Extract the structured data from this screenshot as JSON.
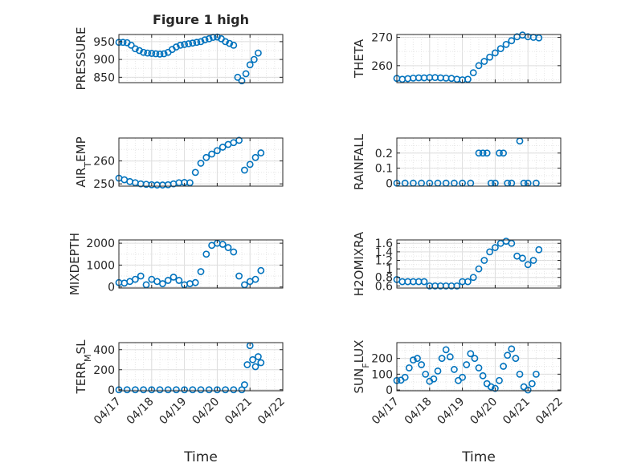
{
  "chart_data": [
    {
      "type": "scatter",
      "title": "Figure 1 high",
      "ylabel": "PRESSURE",
      "xlim": [
        "04/17",
        "04/22"
      ],
      "ylim": [
        835,
        970
      ],
      "yticks": [
        "850",
        "900",
        "950"
      ],
      "xticks": [],
      "xlabel": "",
      "grid": true,
      "marker": "circle",
      "color": "#0072BD",
      "x": [
        "04/17 00:00",
        "04/17 03:00",
        "04/17 06:00",
        "04/17 09:00",
        "04/17 12:00",
        "04/17 15:00",
        "04/17 18:00",
        "04/17 21:00",
        "04/18 00:00",
        "04/18 03:00",
        "04/18 06:00",
        "04/18 09:00",
        "04/18 12:00",
        "04/18 15:00",
        "04/18 18:00",
        "04/18 21:00",
        "04/19 00:00",
        "04/19 03:00",
        "04/19 06:00",
        "04/19 09:00",
        "04/19 12:00",
        "04/19 15:00",
        "04/19 18:00",
        "04/19 21:00",
        "04/20 00:00",
        "04/20 03:00",
        "04/20 06:00",
        "04/20 09:00",
        "04/20 12:00",
        "04/20 15:00",
        "04/20 18:00",
        "04/20 21:00",
        "04/21 00:00",
        "04/21 03:00",
        "04/21 06:00"
      ],
      "y": [
        948,
        948,
        947,
        940,
        930,
        925,
        920,
        918,
        917,
        916,
        915,
        916,
        920,
        928,
        935,
        940,
        942,
        944,
        946,
        948,
        950,
        955,
        958,
        962,
        963,
        958,
        950,
        945,
        940,
        850,
        840,
        860,
        885,
        900,
        918
      ]
    },
    {
      "type": "scatter",
      "title": "",
      "ylabel": "THETA",
      "xlim": [
        "04/17",
        "04/22"
      ],
      "ylim": [
        254,
        271
      ],
      "yticks": [
        "260",
        "270"
      ],
      "xticks": [],
      "xlabel": "",
      "grid": true,
      "marker": "circle",
      "color": "#0072BD",
      "x": [
        "04/17 00:00",
        "04/17 04:00",
        "04/17 08:00",
        "04/17 12:00",
        "04/17 16:00",
        "04/17 20:00",
        "04/18 00:00",
        "04/18 04:00",
        "04/18 08:00",
        "04/18 12:00",
        "04/18 16:00",
        "04/18 20:00",
        "04/19 00:00",
        "04/19 04:00",
        "04/19 08:00",
        "04/19 12:00",
        "04/19 16:00",
        "04/19 20:00",
        "04/20 00:00",
        "04/20 04:00",
        "04/20 08:00",
        "04/20 12:00",
        "04/20 16:00",
        "04/20 20:00",
        "04/21 00:00",
        "04/21 04:00",
        "04/21 08:00"
      ],
      "y": [
        255.5,
        255.2,
        255.4,
        255.6,
        255.7,
        255.7,
        255.8,
        255.8,
        255.7,
        255.6,
        255.5,
        255.2,
        255.0,
        255.2,
        257.5,
        260.0,
        261.5,
        263.0,
        264.5,
        266.0,
        267.5,
        268.8,
        270.2,
        270.8,
        270.2,
        270.0,
        269.8
      ]
    },
    {
      "type": "scatter",
      "title": "",
      "ylabel": "AIR_TEMP",
      "xlim": [
        "04/17",
        "04/22"
      ],
      "ylim": [
        249,
        270
      ],
      "yticks": [
        "250",
        "260"
      ],
      "xticks": [],
      "xlabel": "",
      "grid": true,
      "marker": "circle",
      "color": "#0072BD",
      "x": [
        "04/17 00:00",
        "04/17 04:00",
        "04/17 08:00",
        "04/17 12:00",
        "04/17 16:00",
        "04/17 20:00",
        "04/18 00:00",
        "04/18 04:00",
        "04/18 08:00",
        "04/18 12:00",
        "04/18 16:00",
        "04/18 20:00",
        "04/19 00:00",
        "04/19 04:00",
        "04/19 08:00",
        "04/19 12:00",
        "04/19 16:00",
        "04/19 20:00",
        "04/20 00:00",
        "04/20 04:00",
        "04/20 08:00",
        "04/20 12:00",
        "04/20 16:00",
        "04/20 20:00",
        "04/21 00:00",
        "04/21 04:00",
        "04/21 08:00"
      ],
      "y": [
        252.5,
        251.8,
        251.0,
        250.5,
        250.0,
        249.8,
        249.6,
        249.5,
        249.5,
        249.6,
        250.0,
        250.5,
        250.6,
        250.5,
        255.0,
        259.0,
        261.5,
        263.0,
        264.5,
        266.0,
        267.2,
        268.0,
        269.0,
        256.0,
        258.5,
        261.5,
        263.5
      ]
    },
    {
      "type": "scatter",
      "title": "",
      "ylabel": "RAINFALL",
      "xlim": [
        "04/17",
        "04/22"
      ],
      "ylim": [
        -0.02,
        0.3
      ],
      "yticks": [
        "0",
        "0.1",
        "0.2"
      ],
      "xticks": [],
      "xlabel": "",
      "grid": true,
      "marker": "circle",
      "color": "#0072BD",
      "x": [
        "04/17 00:00",
        "04/17 06:00",
        "04/17 12:00",
        "04/17 18:00",
        "04/18 00:00",
        "04/18 06:00",
        "04/18 12:00",
        "04/18 18:00",
        "04/19 00:00",
        "04/19 06:00",
        "04/19 12:00",
        "04/19 15:00",
        "04/19 18:00",
        "04/19 21:00",
        "04/20 00:00",
        "04/20 03:00",
        "04/20 06:00",
        "04/20 09:00",
        "04/20 12:00",
        "04/20 18:00",
        "04/20 21:00",
        "04/21 00:00",
        "04/21 06:00"
      ],
      "y": [
        0,
        0,
        0,
        0,
        0,
        0,
        0,
        0,
        0,
        0,
        0.2,
        0.2,
        0.2,
        0,
        0,
        0.2,
        0.2,
        0,
        0,
        0.28,
        0,
        0,
        0
      ]
    },
    {
      "type": "scatter",
      "title": "",
      "ylabel": "MIXDEPTH",
      "xlim": [
        "04/17",
        "04/22"
      ],
      "ylim": [
        -50,
        2150
      ],
      "yticks": [
        "0",
        "1000",
        "2000"
      ],
      "xticks": [],
      "xlabel": "",
      "grid": true,
      "marker": "circle",
      "color": "#0072BD",
      "x": [
        "04/17 00:00",
        "04/17 04:00",
        "04/17 08:00",
        "04/17 12:00",
        "04/17 16:00",
        "04/17 20:00",
        "04/18 00:00",
        "04/18 04:00",
        "04/18 08:00",
        "04/18 12:00",
        "04/18 16:00",
        "04/18 20:00",
        "04/19 00:00",
        "04/19 04:00",
        "04/19 08:00",
        "04/19 12:00",
        "04/19 16:00",
        "04/19 20:00",
        "04/20 00:00",
        "04/20 04:00",
        "04/20 08:00",
        "04/20 12:00",
        "04/20 16:00",
        "04/20 20:00",
        "04/21 00:00",
        "04/21 04:00",
        "04/21 08:00"
      ],
      "y": [
        200,
        180,
        250,
        350,
        500,
        100,
        350,
        250,
        150,
        300,
        450,
        300,
        100,
        150,
        200,
        700,
        1500,
        1900,
        2000,
        1950,
        1800,
        1600,
        500,
        100,
        250,
        350,
        750
      ]
    },
    {
      "type": "scatter",
      "title": "",
      "ylabel": "H2OMIXRA",
      "xlim": [
        "04/17",
        "04/22"
      ],
      "ylim": [
        0.55,
        1.68
      ],
      "yticks": [
        "0.6",
        "0.8",
        "1",
        "1.2",
        "1.4",
        "1.6"
      ],
      "xticks": [],
      "xlabel": "",
      "grid": true,
      "marker": "circle",
      "color": "#0072BD",
      "x": [
        "04/17 00:00",
        "04/17 04:00",
        "04/17 08:00",
        "04/17 12:00",
        "04/17 16:00",
        "04/17 20:00",
        "04/18 00:00",
        "04/18 04:00",
        "04/18 08:00",
        "04/18 12:00",
        "04/18 16:00",
        "04/18 20:00",
        "04/19 00:00",
        "04/19 04:00",
        "04/19 08:00",
        "04/19 12:00",
        "04/19 16:00",
        "04/19 20:00",
        "04/20 00:00",
        "04/20 04:00",
        "04/20 08:00",
        "04/20 12:00",
        "04/20 16:00",
        "04/20 20:00",
        "04/21 00:00",
        "04/21 04:00",
        "04/21 08:00"
      ],
      "y": [
        0.75,
        0.7,
        0.7,
        0.7,
        0.7,
        0.7,
        0.6,
        0.6,
        0.6,
        0.6,
        0.6,
        0.6,
        0.7,
        0.7,
        0.8,
        1.0,
        1.2,
        1.4,
        1.5,
        1.6,
        1.65,
        1.6,
        1.3,
        1.25,
        1.1,
        1.2,
        1.45
      ]
    },
    {
      "type": "scatter",
      "title": "",
      "ylabel": "TERR_MSL",
      "xlim": [
        "04/17",
        "04/22"
      ],
      "ylim": [
        -10,
        470
      ],
      "yticks": [
        "0",
        "200",
        "400"
      ],
      "xticks": [
        "04/17",
        "04/18",
        "04/19",
        "04/20",
        "04/21",
        "04/22"
      ],
      "xlabel": "Time",
      "grid": true,
      "marker": "circle",
      "color": "#0072BD",
      "x": [
        "04/17 00:00",
        "04/17 06:00",
        "04/17 12:00",
        "04/17 18:00",
        "04/18 00:00",
        "04/18 06:00",
        "04/18 12:00",
        "04/18 18:00",
        "04/19 00:00",
        "04/19 06:00",
        "04/19 12:00",
        "04/19 18:00",
        "04/20 00:00",
        "04/20 06:00",
        "04/20 12:00",
        "04/20 18:00",
        "04/20 20:00",
        "04/20 22:00",
        "04/21 00:00",
        "04/21 02:00",
        "04/21 04:00",
        "04/21 06:00",
        "04/21 08:00"
      ],
      "y": [
        0,
        0,
        0,
        0,
        0,
        0,
        0,
        0,
        0,
        0,
        0,
        0,
        0,
        0,
        0,
        0,
        50,
        250,
        440,
        300,
        230,
        330,
        270
      ]
    },
    {
      "type": "scatter",
      "title": "",
      "ylabel": "SUN_FLUX",
      "xlim": [
        "04/17",
        "04/22"
      ],
      "ylim": [
        -5,
        300
      ],
      "yticks": [
        "0",
        "100",
        "200"
      ],
      "xticks": [
        "04/17",
        "04/18",
        "04/19",
        "04/20",
        "04/21",
        "04/22"
      ],
      "xlabel": "Time",
      "grid": true,
      "marker": "circle",
      "color": "#0072BD",
      "x": [
        "04/17 00:00",
        "04/17 03:00",
        "04/17 06:00",
        "04/17 09:00",
        "04/17 12:00",
        "04/17 15:00",
        "04/17 18:00",
        "04/17 21:00",
        "04/18 00:00",
        "04/18 03:00",
        "04/18 06:00",
        "04/18 09:00",
        "04/18 12:00",
        "04/18 15:00",
        "04/18 18:00",
        "04/18 21:00",
        "04/19 00:00",
        "04/19 03:00",
        "04/19 06:00",
        "04/19 09:00",
        "04/19 12:00",
        "04/19 15:00",
        "04/19 18:00",
        "04/19 21:00",
        "04/20 00:00",
        "04/20 03:00",
        "04/20 06:00",
        "04/20 09:00",
        "04/20 12:00",
        "04/20 15:00",
        "04/20 18:00",
        "04/20 21:00",
        "04/21 00:00",
        "04/21 03:00",
        "04/21 06:00"
      ],
      "y": [
        60,
        62,
        80,
        140,
        190,
        200,
        160,
        100,
        55,
        70,
        120,
        200,
        255,
        210,
        130,
        60,
        80,
        160,
        230,
        200,
        140,
        90,
        40,
        20,
        10,
        60,
        150,
        220,
        260,
        200,
        100,
        20,
        0,
        40,
        100
      ]
    }
  ]
}
